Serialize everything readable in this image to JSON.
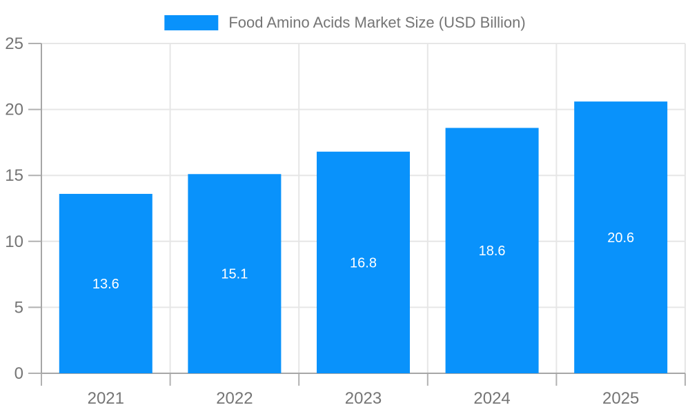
{
  "legend": {
    "label": "Food Amino Acids Market Size (USD Billion)",
    "swatch_color": "#0992fb"
  },
  "chart_data": {
    "type": "bar",
    "title": "",
    "xlabel": "",
    "ylabel": "",
    "categories": [
      "2021",
      "2022",
      "2023",
      "2024",
      "2025"
    ],
    "values": [
      13.6,
      15.1,
      16.8,
      18.6,
      20.6
    ],
    "value_labels": [
      "13.6",
      "15.1",
      "16.8",
      "18.6",
      "20.6"
    ],
    "series_name": "Food Amino Acids Market Size (USD Billion)",
    "ylim": [
      0,
      25
    ],
    "yticks": [
      0,
      5,
      10,
      15,
      20,
      25
    ],
    "grid": true,
    "legend_position": "top-center",
    "colors": {
      "bar": "#0992fb",
      "value_label": "#ffffff",
      "gridline": "#e6e6e6",
      "axis": "#a6a6a6",
      "tick": "#b1b1b1",
      "tick_label": "#757575"
    }
  }
}
